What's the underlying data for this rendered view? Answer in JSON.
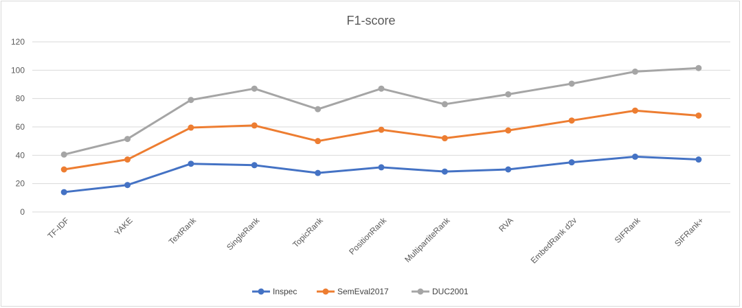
{
  "chart_data": {
    "type": "line",
    "title": "F1-score",
    "xlabel": "",
    "ylabel": "",
    "ylim": [
      0,
      120
    ],
    "yticks": [
      0,
      20,
      40,
      60,
      80,
      100,
      120
    ],
    "grid": true,
    "legend_position": "bottom",
    "categories": [
      "TF-IDF",
      "YAKE",
      "TextRank",
      "SingleRank",
      "TopicRank",
      "PositionRank",
      "MultipartiteRank",
      "RVA",
      "EmbedRank d2v",
      "SIFRank",
      "SIFRank+"
    ],
    "series": [
      {
        "name": "Inspec",
        "color": "#4472C4",
        "values": [
          14,
          19,
          34,
          33,
          27.5,
          31.5,
          28.5,
          30,
          35,
          39,
          37
        ]
      },
      {
        "name": "SemEval2017",
        "color": "#ED7D31",
        "values": [
          30,
          37,
          59.5,
          61,
          50,
          58,
          52,
          57.5,
          64.5,
          71.5,
          68
        ]
      },
      {
        "name": "DUC2001",
        "color": "#A5A5A5",
        "values": [
          40.5,
          51.5,
          79,
          87,
          72.5,
          87,
          76,
          83,
          90.5,
          99,
          101.5
        ]
      }
    ]
  }
}
